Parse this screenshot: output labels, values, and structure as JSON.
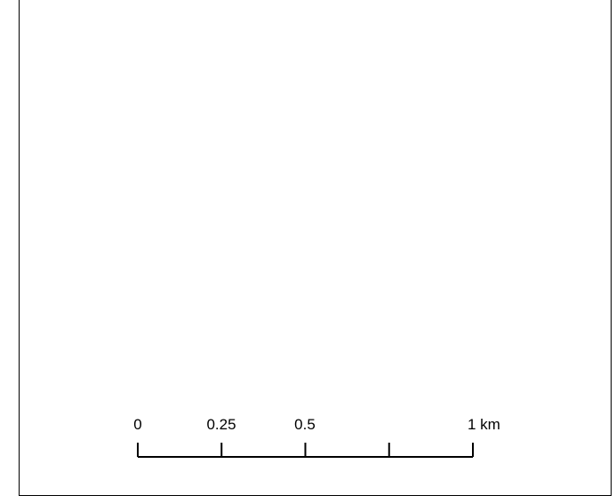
{
  "map": {
    "scale_bar": {
      "labels": [
        "0",
        "0.25",
        "0.5",
        "1 km"
      ],
      "tick_values_km": [
        0,
        0.25,
        0.5,
        0.75,
        1
      ],
      "max_km": 1,
      "color": "#000000"
    },
    "frame_color": "#000000",
    "background": "#ffffff"
  }
}
